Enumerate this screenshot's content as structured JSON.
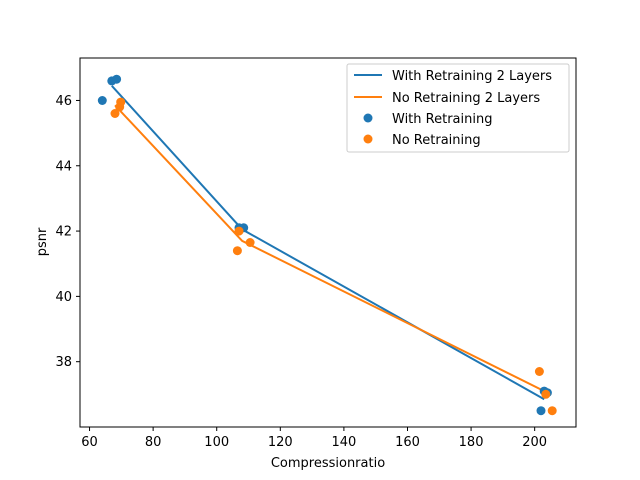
{
  "chart_data": {
    "type": "scatter",
    "title": "",
    "xlabel": "Compressionratio",
    "ylabel": "psnr",
    "xlim": [
      57,
      213
    ],
    "ylim": [
      36.0,
      47.3
    ],
    "xticks": [
      60,
      80,
      100,
      120,
      140,
      160,
      180,
      200
    ],
    "yticks": [
      38,
      40,
      42,
      44,
      46
    ],
    "grid": false,
    "legend_position": "top-right",
    "lines": [
      {
        "name": "With Retraining 2 Layers",
        "color": "#1f77b4",
        "points": [
          [
            67,
            46.45
          ],
          [
            108,
            42.05
          ],
          [
            203,
            36.85
          ]
        ]
      },
      {
        "name": "No Retraining 2 Layers",
        "color": "#ff7f0e",
        "points": [
          [
            68,
            45.85
          ],
          [
            108,
            41.7
          ],
          [
            203,
            37.1
          ]
        ]
      }
    ],
    "scatter": [
      {
        "name": "With Retraining",
        "color": "#1f77b4",
        "points": [
          [
            64,
            46.0
          ],
          [
            67,
            46.6
          ],
          [
            68.5,
            46.65
          ],
          [
            107,
            42.1
          ],
          [
            108.5,
            42.1
          ],
          [
            202,
            36.5
          ],
          [
            203,
            37.1
          ],
          [
            204,
            37.05
          ]
        ]
      },
      {
        "name": "No Retraining",
        "color": "#ff7f0e",
        "points": [
          [
            68,
            45.6
          ],
          [
            69.5,
            45.8
          ],
          [
            69.8,
            45.95
          ],
          [
            106.5,
            41.4
          ],
          [
            107,
            42.0
          ],
          [
            110.5,
            41.65
          ],
          [
            201.5,
            37.7
          ],
          [
            203.5,
            37.0
          ],
          [
            205.5,
            36.5
          ]
        ]
      }
    ]
  }
}
